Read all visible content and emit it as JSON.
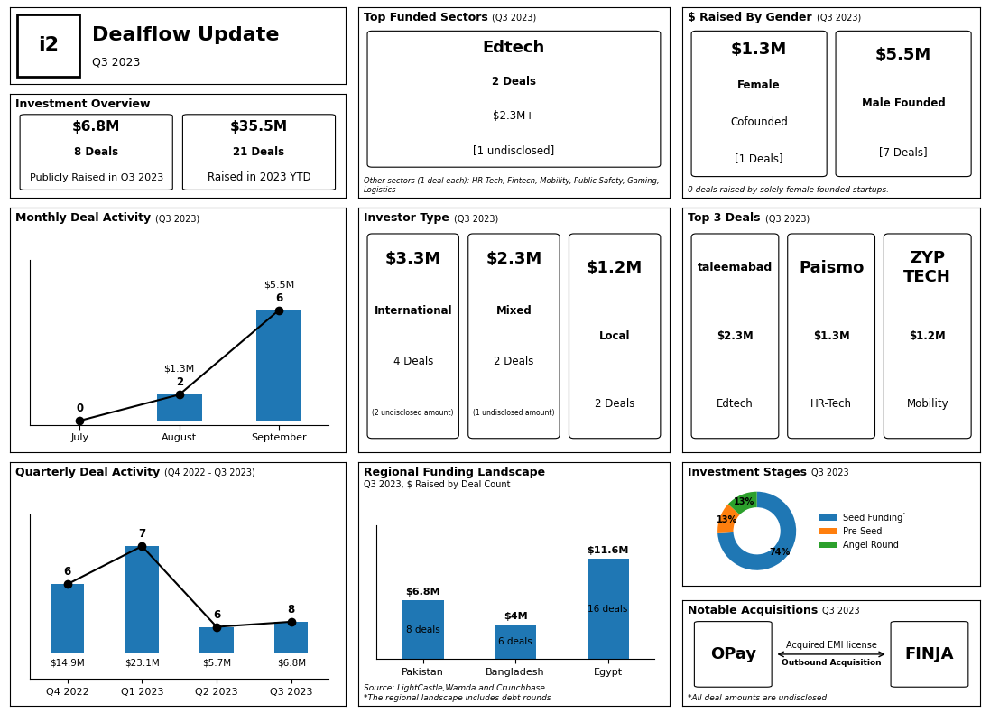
{
  "chart_data": [
    {
      "type": "header",
      "title": "Dealflow Update",
      "subtitle": "Q3 2023",
      "annotations": [
        "i2"
      ]
    },
    {
      "type": "boxes",
      "title": "Investment Overview",
      "boxes": [
        [
          "$6.8M",
          "8 Deals",
          "Publicly Raised in Q3 2023"
        ],
        [
          "$35.5M",
          "21 Deals",
          "Raised in 2023 YTD"
        ]
      ]
    },
    {
      "type": "bar",
      "title": "Monthly Deal Activity",
      "subtitle": "(Q3 2023)",
      "categories": [
        "July",
        "August",
        "September"
      ],
      "series": [
        {
          "type": "bar",
          "values": [
            0,
            1.3,
            5.5
          ],
          "value_labels": [
            null,
            "$1.3M",
            "$5.5M"
          ]
        },
        {
          "type": "line",
          "values": [
            0,
            1.3,
            5.5
          ],
          "marker": "o",
          "color": "black"
        }
      ],
      "deals": [
        0,
        2,
        6
      ],
      "ylim": [
        -0.2,
        8.0
      ],
      "tick_labels": "x",
      "data_labels": true
    },
    {
      "type": "bar",
      "title": "Quarterly Deal Activity",
      "subtitle": "(Q4 2022 - Q3 2023)",
      "categories": [
        "Q4 2022",
        "Q1 2023",
        "Q2 2023",
        "Q3 2023"
      ],
      "series": [
        {
          "type": "bar",
          "values": [
            14.9,
            23.1,
            5.7,
            6.8
          ],
          "value_labels": [
            "$14.9M",
            "$23.1M",
            "$5.7M",
            "$6.8M"
          ]
        },
        {
          "type": "line",
          "values": [
            14.9,
            23.1,
            5.7,
            6.8
          ],
          "marker": "o",
          "color": "black"
        }
      ],
      "deals": [
        6,
        7,
        6,
        8
      ],
      "ylim": [
        -5.5,
        30
      ],
      "tick_labels": "x",
      "data_labels": true
    },
    {
      "type": "boxes",
      "title": "Top Funded Sectors",
      "subtitle": "(Q3 2023)",
      "boxes": [
        [
          "Edtech",
          "2 Deals",
          "$2.3M+",
          "[1 undisclosed]"
        ]
      ],
      "annotations": [
        "Other sectors (1 deal each): HR Tech, Fintech, Mobility, Public Safety, Gaming, Logistics"
      ]
    },
    {
      "type": "boxes",
      "title": "Investor Type",
      "subtitle": "(Q3 2023)",
      "boxes": [
        [
          "$3.3M",
          "International",
          "4 Deals",
          "(2 undisclosed amount)"
        ],
        [
          "$2.3M",
          "Mixed",
          "2 Deals",
          "(1 undisclosed amount)"
        ],
        [
          "$1.2M",
          "Local",
          "2 Deals"
        ]
      ]
    },
    {
      "type": "bar",
      "title": "Regional Funding Landscape",
      "subtitle": "Q3 2023, $ Raised by Deal Count",
      "annotations": [
        "Source: LightCastle,Wamda and Crunchbase",
        "*The regional landscape includes debt rounds"
      ],
      "categories": [
        "Pakistan",
        "Bangladesh",
        "Egypt"
      ],
      "series": [
        {
          "type": "bar",
          "values": [
            6.8,
            4.0,
            11.6
          ],
          "value_labels": [
            "$6.8M",
            "$4M",
            "$11.6M"
          ]
        }
      ],
      "deal_labels": [
        "8 deals",
        "6 deals",
        "16 deals"
      ],
      "ylim": [
        0,
        15.5
      ],
      "tick_labels": "x",
      "data_labels": true
    },
    {
      "type": "boxes",
      "title": "$ Raised By Gender",
      "subtitle": "(Q3 2023)",
      "boxes": [
        [
          "$1.3M",
          "Female",
          "Cofounded",
          "[1 Deals]"
        ],
        [
          "$5.5M",
          "Male Founded",
          "[7 Deals]"
        ]
      ],
      "annotations": [
        "0 deals raised by solely female founded startups."
      ]
    },
    {
      "type": "boxes",
      "title": "Top 3 Deals",
      "subtitle": "(Q3 2023)",
      "boxes": [
        [
          "taleemabad",
          "$2.3M",
          "Edtech"
        ],
        [
          "Paismo",
          "$1.3M",
          "HR-Tech"
        ],
        [
          "ZYP\nTECH",
          "$1.2M",
          "Mobility"
        ]
      ]
    },
    {
      "type": "donut",
      "title": "Investment Stages",
      "subtitle": "Q3 2023",
      "categories": [
        "Seed Funding`",
        "Pre-Seed",
        "Angel Round"
      ],
      "values": [
        74,
        13,
        13
      ],
      "value_labels": [
        "74%",
        "13%",
        "13%"
      ],
      "legend": "center left"
    },
    {
      "type": "link",
      "title": "Notable Acquisitions",
      "subtitle": "Q3 2023",
      "boxes": [
        [
          "OPay"
        ],
        [
          "FINJA"
        ]
      ],
      "annotations": [
        "Acquired EMI license",
        "Outbound Acquisition",
        "*All deal amounts are undisclosed"
      ]
    }
  ]
}
